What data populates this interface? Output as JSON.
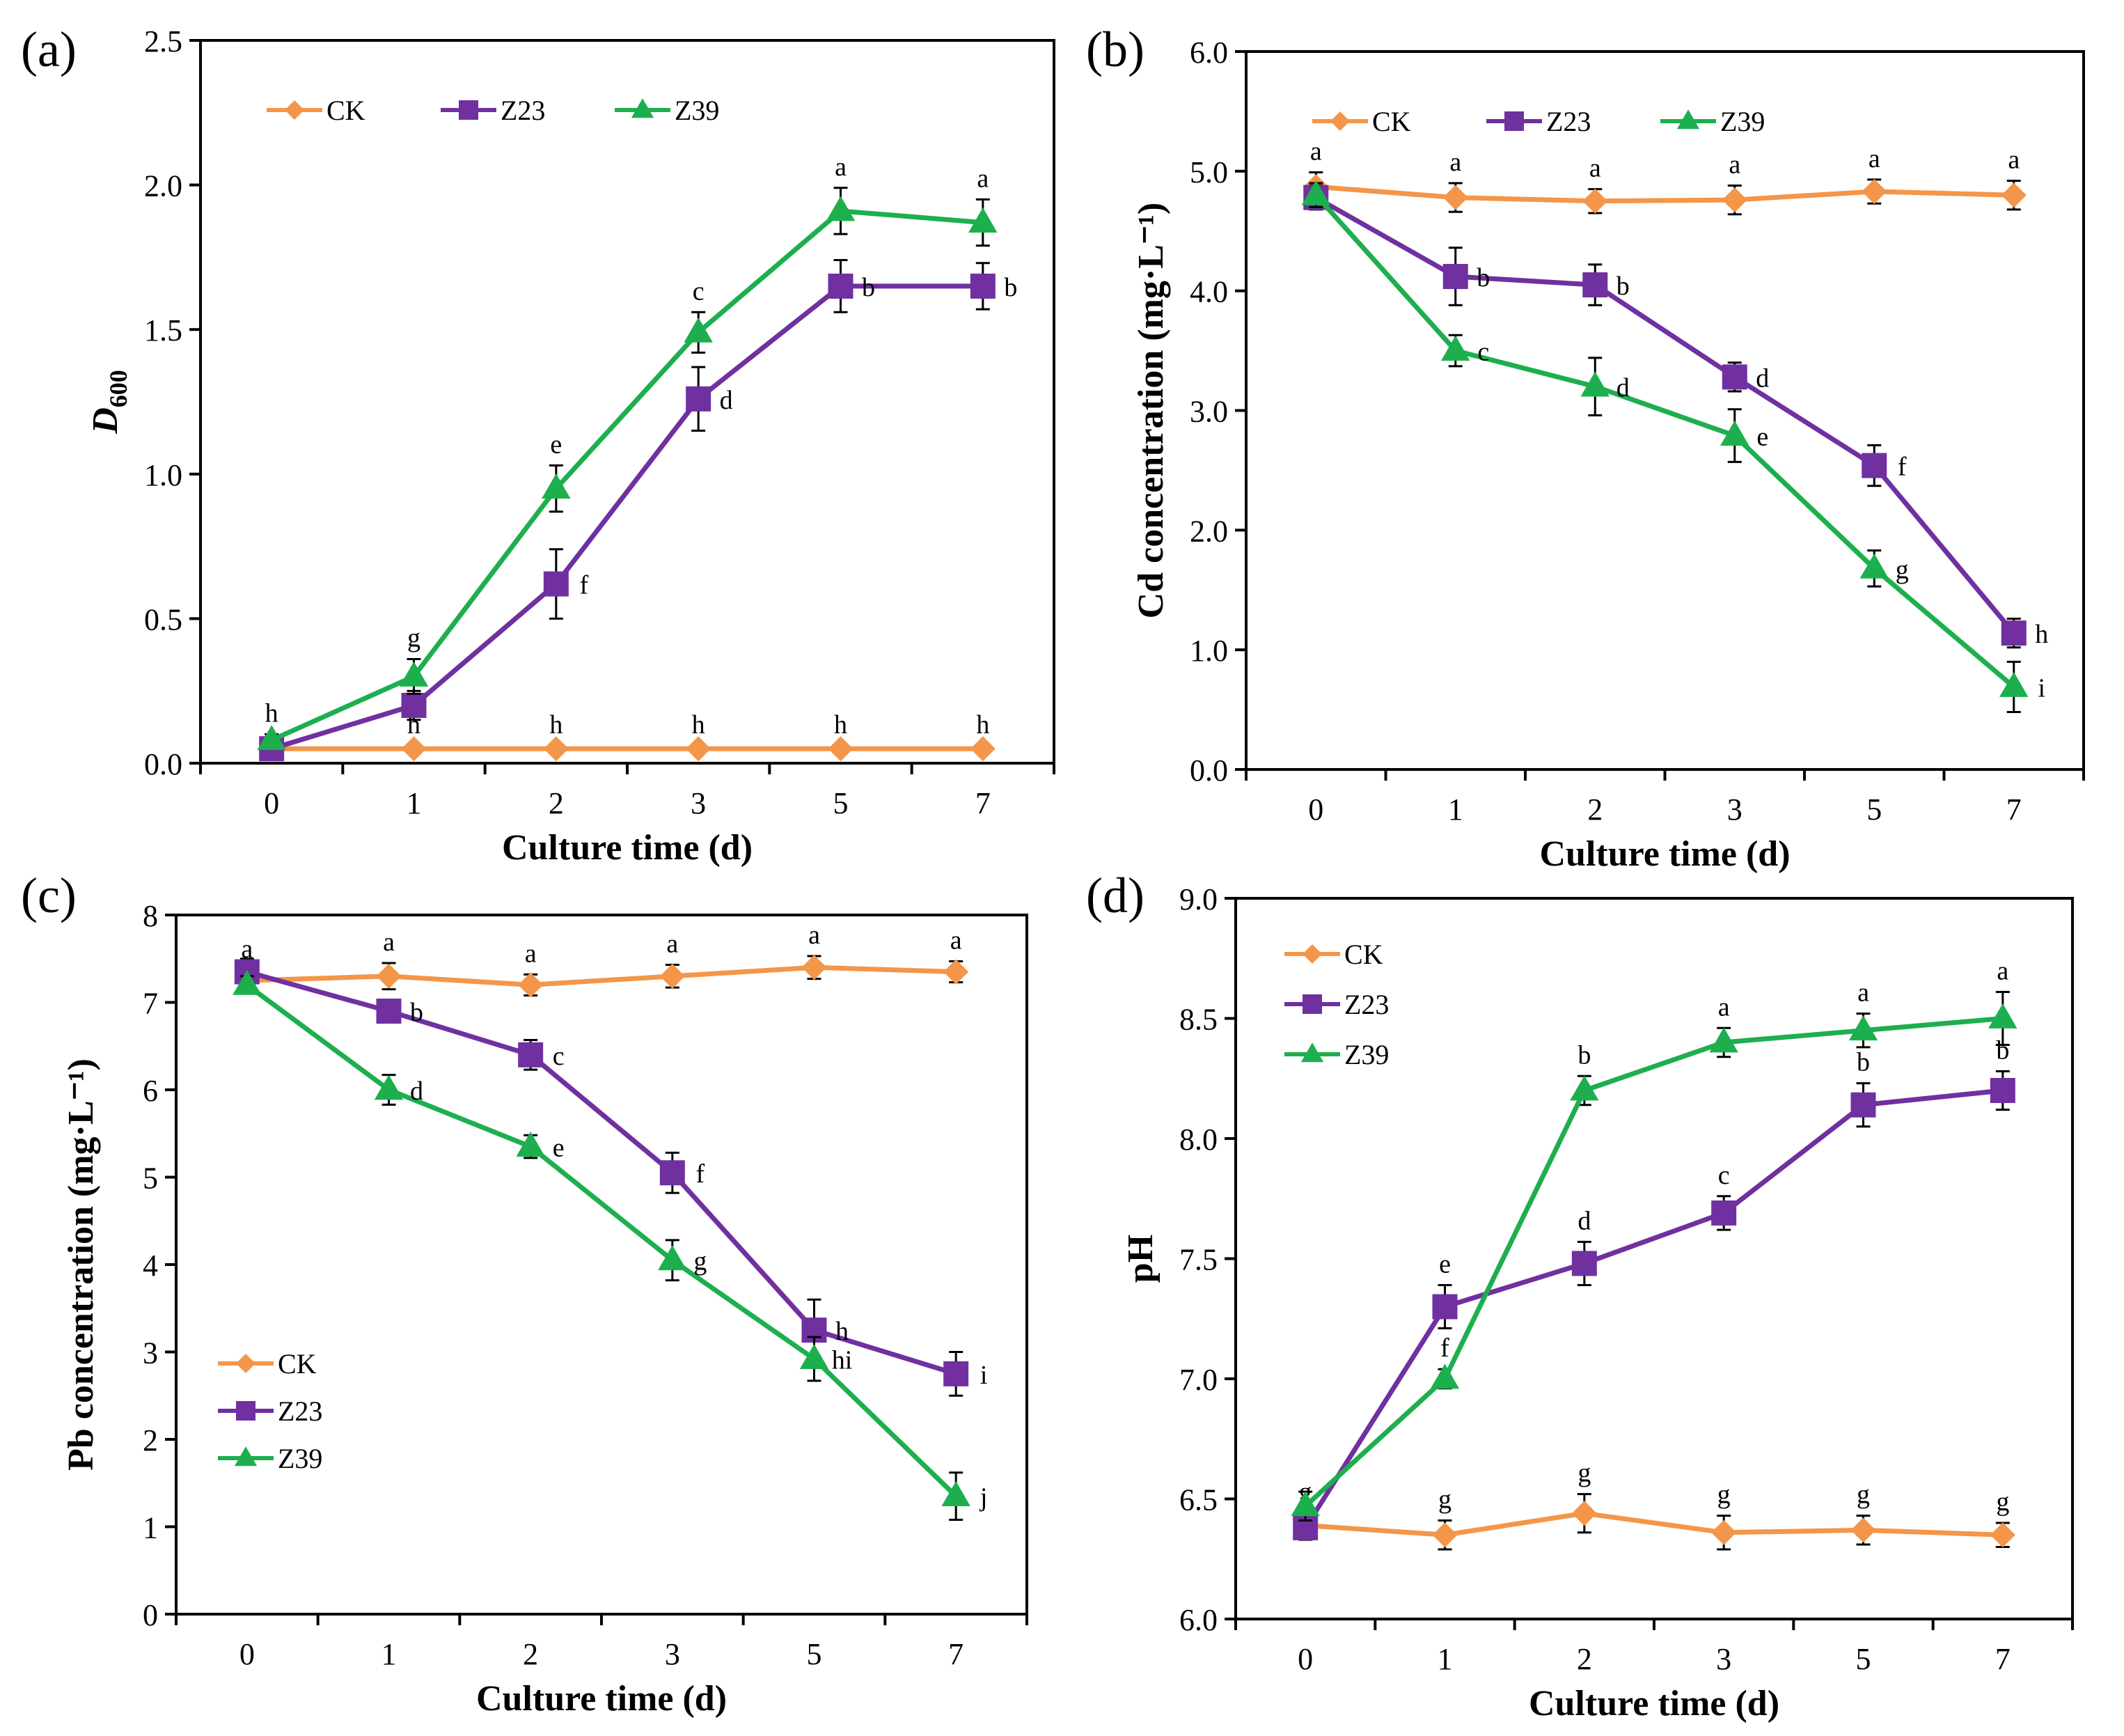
{
  "colors": {
    "CK": "#F4964A",
    "Z23": "#7030A0",
    "Z39": "#1DAF4E"
  },
  "chart_data": [
    {
      "type": "line",
      "panel_label": "(a)",
      "categories": [
        "0",
        "1",
        "2",
        "3",
        "5",
        "7"
      ],
      "xlabel": "Culture time (d)",
      "ylabel": "D",
      "ylabel_sub": "600",
      "ylim": [
        0,
        2.5
      ],
      "yticks": [
        "0.0",
        "0.5",
        "1.0",
        "1.5",
        "2.0",
        "2.5"
      ],
      "legend": "top-left-horizontal",
      "series": [
        {
          "name": "CK",
          "marker": "diamond",
          "values": [
            0.05,
            0.05,
            0.05,
            0.05,
            0.05,
            0.05
          ],
          "err": [
            0.01,
            0.01,
            0.01,
            0.01,
            0.01,
            0.01
          ],
          "letters": [
            "",
            "h",
            "h",
            "h",
            "h",
            "h"
          ]
        },
        {
          "name": "Z23",
          "marker": "square",
          "values": [
            0.05,
            0.2,
            0.62,
            1.26,
            1.65,
            1.65
          ],
          "err": [
            0.02,
            0.05,
            0.12,
            0.11,
            0.09,
            0.08
          ],
          "letters": [
            "",
            "",
            "f",
            "d",
            "b",
            "b"
          ]
        },
        {
          "name": "Z39",
          "marker": "triangle",
          "values": [
            0.08,
            0.3,
            0.95,
            1.49,
            1.91,
            1.87
          ],
          "err": [
            0.02,
            0.06,
            0.08,
            0.07,
            0.08,
            0.08
          ],
          "letters": [
            "h",
            "g",
            "e",
            "c",
            "a",
            "a"
          ]
        }
      ]
    },
    {
      "type": "line",
      "panel_label": "(b)",
      "categories": [
        "0",
        "1",
        "2",
        "3",
        "5",
        "7"
      ],
      "xlabel": "Culture time (d)",
      "ylabel": "Cd concentration (mg·L⁻¹)",
      "ylim": [
        0,
        6
      ],
      "yticks": [
        "0.0",
        "1.0",
        "2.0",
        "3.0",
        "4.0",
        "5.0",
        "6.0"
      ],
      "legend": "top-left-horizontal",
      "series": [
        {
          "name": "CK",
          "marker": "diamond",
          "values": [
            4.87,
            4.78,
            4.75,
            4.76,
            4.83,
            4.8
          ],
          "err": [
            0.12,
            0.12,
            0.1,
            0.12,
            0.1,
            0.12
          ],
          "letters": [
            "a",
            "a",
            "a",
            "a",
            "a",
            "a"
          ]
        },
        {
          "name": "Z23",
          "marker": "square",
          "values": [
            4.78,
            4.12,
            4.05,
            3.28,
            2.54,
            1.14
          ],
          "err": [
            0.1,
            0.24,
            0.17,
            0.12,
            0.17,
            0.12
          ],
          "letters": [
            "",
            "b",
            "b",
            "d",
            "f",
            "h"
          ]
        },
        {
          "name": "Z39",
          "marker": "triangle",
          "values": [
            4.8,
            3.5,
            3.2,
            2.79,
            1.68,
            0.69
          ],
          "err": [
            0.1,
            0.13,
            0.24,
            0.22,
            0.15,
            0.21
          ],
          "letters": [
            "",
            "c",
            "d",
            "e",
            "g",
            "i"
          ]
        }
      ]
    },
    {
      "type": "line",
      "panel_label": "(c)",
      "categories": [
        "0",
        "1",
        "2",
        "3",
        "5",
        "7"
      ],
      "xlabel": "Culture time (d)",
      "ylabel": "Pb concentration (mg·L⁻¹)",
      "ylim": [
        0,
        8
      ],
      "yticks": [
        "0",
        "1",
        "2",
        "3",
        "4",
        "5",
        "6",
        "7",
        "8"
      ],
      "legend": "bottom-left-vertical",
      "series": [
        {
          "name": "CK",
          "marker": "diamond",
          "values": [
            7.25,
            7.3,
            7.2,
            7.3,
            7.4,
            7.35
          ],
          "err": [
            0.12,
            0.15,
            0.12,
            0.13,
            0.13,
            0.12
          ],
          "letters": [
            "a",
            "a",
            "a",
            "a",
            "a",
            "a"
          ]
        },
        {
          "name": "Z23",
          "marker": "square",
          "values": [
            7.35,
            6.9,
            6.4,
            5.05,
            3.25,
            2.75
          ],
          "err": [
            0.15,
            0.12,
            0.17,
            0.23,
            0.35,
            0.25
          ],
          "letters": [
            "",
            "b",
            "c",
            "f",
            "h",
            "i"
          ]
        },
        {
          "name": "Z39",
          "marker": "triangle",
          "values": [
            7.2,
            6.0,
            5.35,
            4.05,
            2.92,
            1.35
          ],
          "err": [
            0.1,
            0.17,
            0.13,
            0.23,
            0.25,
            0.27
          ],
          "letters": [
            "",
            "d",
            "e",
            "g",
            "hi",
            "j"
          ]
        }
      ]
    },
    {
      "type": "line",
      "panel_label": "(d)",
      "categories": [
        "0",
        "1",
        "2",
        "3",
        "5",
        "7"
      ],
      "xlabel": "Culture time (d)",
      "ylabel": "pH",
      "ylim": [
        6,
        9
      ],
      "yticks": [
        "6.0",
        "6.5",
        "7.0",
        "7.5",
        "8.0",
        "8.5",
        "9.0"
      ],
      "legend": "top-left-vertical",
      "series": [
        {
          "name": "CK",
          "marker": "diamond",
          "values": [
            6.39,
            6.35,
            6.44,
            6.36,
            6.37,
            6.35
          ],
          "err": [
            0.05,
            0.06,
            0.08,
            0.07,
            0.06,
            0.05
          ],
          "letters": [
            "g",
            "g",
            "g",
            "g",
            "g",
            "g"
          ]
        },
        {
          "name": "Z23",
          "marker": "square",
          "values": [
            6.38,
            7.3,
            7.48,
            7.69,
            8.14,
            8.2
          ],
          "err": [
            0.05,
            0.09,
            0.09,
            0.07,
            0.09,
            0.08
          ],
          "letters": [
            "",
            "e",
            "d",
            "c",
            "b",
            "b"
          ]
        },
        {
          "name": "Z39",
          "marker": "triangle",
          "values": [
            6.47,
            7.0,
            8.2,
            8.4,
            8.45,
            8.5
          ],
          "err": [
            0.06,
            0.04,
            0.06,
            0.06,
            0.07,
            0.11
          ],
          "letters": [
            "",
            "f",
            "b",
            "a",
            "a",
            "a"
          ]
        }
      ]
    }
  ]
}
